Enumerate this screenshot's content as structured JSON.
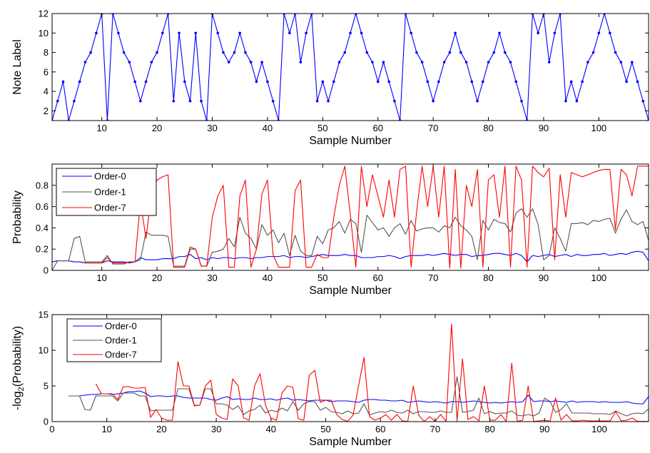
{
  "chart_data": [
    {
      "type": "line",
      "xlabel": "Sample Number",
      "ylabel": "Note Label",
      "xlim": [
        1,
        109
      ],
      "ylim": [
        1,
        12
      ],
      "xticks": [
        10,
        20,
        30,
        40,
        50,
        60,
        70,
        80,
        90,
        100
      ],
      "yticks": [
        2,
        4,
        6,
        8,
        10,
        12
      ],
      "grid": false,
      "legend": null,
      "series": [
        {
          "color": "#0000ff",
          "marker": "dot",
          "values": [
            1,
            3,
            5,
            1,
            3,
            5,
            7,
            8,
            10,
            12,
            1,
            12,
            10,
            8,
            7,
            5,
            3,
            5,
            7,
            8,
            10,
            12,
            3,
            10,
            5,
            3,
            10,
            3,
            1,
            12,
            10,
            8,
            7,
            8,
            10,
            8,
            7,
            5,
            7,
            5,
            3,
            1,
            12,
            10,
            12,
            7,
            10,
            12,
            3,
            5,
            3,
            5,
            7,
            8,
            10,
            12,
            10,
            8,
            7,
            5,
            7,
            5,
            3,
            1,
            12,
            10,
            8,
            7,
            5,
            3,
            5,
            7,
            8,
            10,
            8,
            7,
            5,
            3,
            5,
            7,
            8,
            10,
            8,
            7,
            5,
            3,
            1,
            12,
            10,
            12,
            7,
            10,
            12,
            3,
            5,
            3,
            5,
            7,
            8,
            10,
            12,
            10,
            8,
            7,
            5,
            7,
            5,
            3,
            1
          ]
        }
      ]
    },
    {
      "type": "line",
      "xlabel": "Sample Number",
      "ylabel": "Probability",
      "xlim": [
        1,
        109
      ],
      "ylim": [
        0,
        1
      ],
      "xticks": [
        10,
        20,
        30,
        40,
        50,
        60,
        70,
        80,
        90,
        100
      ],
      "yticks": [
        0,
        0.2,
        0.4,
        0.6,
        0.8
      ],
      "ytick_labels": [
        "0",
        "0.2",
        "0.4",
        "0.6",
        "0.8"
      ],
      "grid": false,
      "legend": "top-left",
      "series": [
        {
          "name": "Order-0",
          "color": "#0000ff",
          "values": [
            0.08,
            0.09,
            0.09,
            0.09,
            0.08,
            0.08,
            0.07,
            0.07,
            0.07,
            0.07,
            0.09,
            0.08,
            0.08,
            0.08,
            0.07,
            0.08,
            0.12,
            0.1,
            0.1,
            0.1,
            0.11,
            0.11,
            0.11,
            0.13,
            0.13,
            0.15,
            0.11,
            0.12,
            0.1,
            0.12,
            0.11,
            0.12,
            0.12,
            0.11,
            0.12,
            0.12,
            0.11,
            0.12,
            0.12,
            0.13,
            0.13,
            0.13,
            0.14,
            0.12,
            0.13,
            0.13,
            0.12,
            0.13,
            0.14,
            0.15,
            0.14,
            0.14,
            0.14,
            0.15,
            0.14,
            0.14,
            0.12,
            0.12,
            0.12,
            0.13,
            0.13,
            0.14,
            0.13,
            0.11,
            0.13,
            0.14,
            0.14,
            0.14,
            0.15,
            0.14,
            0.15,
            0.16,
            0.15,
            0.14,
            0.15,
            0.15,
            0.13,
            0.14,
            0.14,
            0.15,
            0.16,
            0.16,
            0.15,
            0.14,
            0.16,
            0.14,
            0.08,
            0.14,
            0.13,
            0.14,
            0.15,
            0.13,
            0.14,
            0.15,
            0.13,
            0.15,
            0.14,
            0.14,
            0.15,
            0.15,
            0.16,
            0.14,
            0.15,
            0.16,
            0.15,
            0.17,
            0.18,
            0.17,
            0.09
          ]
        },
        {
          "name": "Order-1",
          "color": "#555555",
          "values": [
            0,
            0.09,
            0.09,
            0.09,
            0.3,
            0.32,
            0.08,
            0.08,
            0.08,
            0.08,
            0.14,
            0.06,
            0.06,
            0.06,
            0.08,
            0.08,
            0.1,
            0.36,
            0.33,
            0.33,
            0.33,
            0.32,
            0.04,
            0.04,
            0.04,
            0.22,
            0.2,
            0.04,
            0.04,
            0.17,
            0.18,
            0.2,
            0.3,
            0.22,
            0.5,
            0.35,
            0.3,
            0.2,
            0.43,
            0.33,
            0.38,
            0.26,
            0.35,
            0.14,
            0.33,
            0.18,
            0.14,
            0.14,
            0.32,
            0.25,
            0.38,
            0.4,
            0.46,
            0.35,
            0.48,
            0.44,
            0.17,
            0.52,
            0.45,
            0.38,
            0.4,
            0.32,
            0.4,
            0.44,
            0.34,
            0.47,
            0.37,
            0.39,
            0.4,
            0.4,
            0.36,
            0.42,
            0.4,
            0.5,
            0.42,
            0.38,
            0.32,
            0.1,
            0.47,
            0.38,
            0.48,
            0.45,
            0.44,
            0.36,
            0.54,
            0.58,
            0.5,
            0.58,
            0.43,
            0.1,
            0.14,
            0.4,
            0.3,
            0.18,
            0.44,
            0.44,
            0.45,
            0.43,
            0.47,
            0.46,
            0.48,
            0.49,
            0.35,
            0.48,
            0.57,
            0.46,
            0.43,
            0.46,
            0.28
          ]
        },
        {
          "name": "Order-7",
          "color": "#ff0000",
          "values": [
            null,
            null,
            null,
            null,
            null,
            null,
            0.07,
            0.07,
            0.07,
            0.07,
            0.12,
            0.07,
            0.07,
            0.07,
            0.08,
            0.08,
            0.65,
            0.3,
            0.72,
            0.85,
            0.88,
            0.9,
            0.03,
            0.03,
            0.03,
            0.2,
            0.2,
            0.04,
            0.04,
            0.5,
            0.7,
            0.8,
            0.03,
            0.03,
            0.7,
            0.85,
            0.03,
            0.2,
            0.72,
            0.85,
            0.15,
            0.03,
            0.03,
            0.03,
            0.75,
            0.85,
            0.03,
            0.03,
            0.15,
            0.12,
            0.12,
            0.5,
            0.8,
            0.98,
            0.52,
            0.03,
            0.98,
            0.6,
            0.9,
            0.7,
            0.5,
            0.85,
            0.5,
            0.95,
            0.98,
            0.03,
            0.55,
            0.98,
            0.6,
            0.98,
            0.5,
            0.98,
            0.02,
            0.95,
            0.02,
            0.8,
            0.6,
            0.95,
            0.03,
            0.85,
            0.9,
            0.5,
            0.98,
            0.03,
            0.98,
            0.85,
            0.03,
            0.98,
            0.92,
            0.88,
            0.96,
            0.1,
            0.9,
            0.5,
            0.92,
            0.9,
            0.88,
            0.9,
            0.92,
            0.94,
            0.95,
            0.95,
            0.38,
            0.95,
            0.9,
            0.7,
            0.98,
            0.98,
            0.98
          ]
        }
      ]
    },
    {
      "type": "line",
      "xlabel": "Sample Number",
      "ylabel": "-log₂(Probability)",
      "xlim": [
        0,
        109
      ],
      "ylim": [
        0,
        15
      ],
      "xticks": [
        0,
        10,
        20,
        30,
        40,
        50,
        60,
        70,
        80,
        90,
        100
      ],
      "yticks": [
        0,
        5,
        10,
        15
      ],
      "grid": false,
      "legend": "top-left",
      "series": [
        {
          "name": "Order-0",
          "color": "#0000ff",
          "values": [
            null,
            null,
            3.6,
            3.6,
            3.6,
            3.7,
            3.8,
            3.8,
            3.9,
            3.9,
            3.8,
            3.9,
            4.0,
            4.2,
            4.2,
            4.3,
            4.0,
            3.5,
            3.6,
            3.6,
            3.5,
            3.6,
            3.6,
            3.4,
            3.3,
            3.3,
            3.3,
            3.3,
            3.1,
            3.0,
            3.3,
            3.5,
            3.1,
            3.2,
            3.1,
            3.1,
            3.3,
            3.1,
            3.1,
            3.2,
            3.0,
            3.2,
            3.3,
            3.0,
            3.1,
            3.0,
            2.9,
            3.0,
            3.0,
            3.0,
            2.8,
            2.9,
            2.9,
            2.9,
            2.8,
            2.7,
            3.0,
            3.1,
            3.1,
            3.0,
            3.0,
            2.9,
            2.9,
            3.0,
            2.7,
            2.8,
            2.9,
            2.8,
            2.7,
            2.8,
            2.7,
            2.6,
            2.8,
            2.8,
            2.7,
            2.8,
            2.9,
            2.8,
            2.7,
            2.6,
            2.7,
            2.6,
            2.7,
            2.8,
            2.7,
            2.8,
            3.7,
            2.8,
            2.9,
            2.9,
            2.8,
            2.9,
            2.8,
            2.7,
            2.9,
            2.7,
            2.8,
            2.8,
            2.8,
            2.7,
            2.8,
            2.7,
            2.7,
            2.7,
            2.8,
            2.6,
            2.5,
            2.5,
            3.5
          ]
        },
        {
          "name": "Order-1",
          "color": "#555555",
          "values": [
            null,
            null,
            3.6,
            3.6,
            3.6,
            1.7,
            1.6,
            3.6,
            3.6,
            3.6,
            3.6,
            2.9,
            4.0,
            4.0,
            4.0,
            3.6,
            3.6,
            1.5,
            1.6,
            1.6,
            1.6,
            1.6,
            4.6,
            4.6,
            4.6,
            2.2,
            2.3,
            4.6,
            4.6,
            2.5,
            2.5,
            2.3,
            1.7,
            2.2,
            1.0,
            1.5,
            1.7,
            2.3,
            1.2,
            1.6,
            1.4,
            1.9,
            1.5,
            2.8,
            1.6,
            2.5,
            2.8,
            2.8,
            1.6,
            2.0,
            1.4,
            1.3,
            1.1,
            1.5,
            1.1,
            1.2,
            2.5,
            0.9,
            1.2,
            1.4,
            1.3,
            1.6,
            1.3,
            1.2,
            1.6,
            1.1,
            1.4,
            1.4,
            1.3,
            1.3,
            1.5,
            1.3,
            1.3,
            6.3,
            1.3,
            1.4,
            1.6,
            3.3,
            1.1,
            1.4,
            1.1,
            1.2,
            1.2,
            1.5,
            0.9,
            0.8,
            1.0,
            0.8,
            1.2,
            3.3,
            2.8,
            1.3,
            1.7,
            2.5,
            1.2,
            1.2,
            1.2,
            1.2,
            1.1,
            1.1,
            1.1,
            1.0,
            1.5,
            1.1,
            0.8,
            1.1,
            1.2,
            1.1,
            1.8
          ]
        },
        {
          "name": "Order-7",
          "color": "#ff0000",
          "values": [
            null,
            null,
            null,
            null,
            null,
            null,
            null,
            5.3,
            3.9,
            3.9,
            3.9,
            3.1,
            4.9,
            4.9,
            4.7,
            4.7,
            4.8,
            0.6,
            1.7,
            0.5,
            0.2,
            0.2,
            8.4,
            5.0,
            5.0,
            2.3,
            2.3,
            5.0,
            5.8,
            1.0,
            0.5,
            0.3,
            6.0,
            5.0,
            0.5,
            0.2,
            5.0,
            6.7,
            2.3,
            0.5,
            0.2,
            4.0,
            5.0,
            4.8,
            0.4,
            0.2,
            6.5,
            7.2,
            2.7,
            3.0,
            3.0,
            1.0,
            0.3,
            0.03,
            0.9,
            5.0,
            9.0,
            0.7,
            0.2,
            0.5,
            1.0,
            0.2,
            1.0,
            0.1,
            0.03,
            5.0,
            0.9,
            0.03,
            0.7,
            0.03,
            1.0,
            0.03,
            13.7,
            0.1,
            8.8,
            0.3,
            0.7,
            0.1,
            5.0,
            0.2,
            0.2,
            1.0,
            0.03,
            8.2,
            0.03,
            0.2,
            5.0,
            0.03,
            0.1,
            0.2,
            0.06,
            3.3,
            0.2,
            1.0,
            0.1,
            0.1,
            0.2,
            0.1,
            0.1,
            0.1,
            0.1,
            0.1,
            1.4,
            0.1,
            0.2,
            0.5,
            0.03,
            0.03,
            0.03
          ]
        }
      ]
    }
  ]
}
